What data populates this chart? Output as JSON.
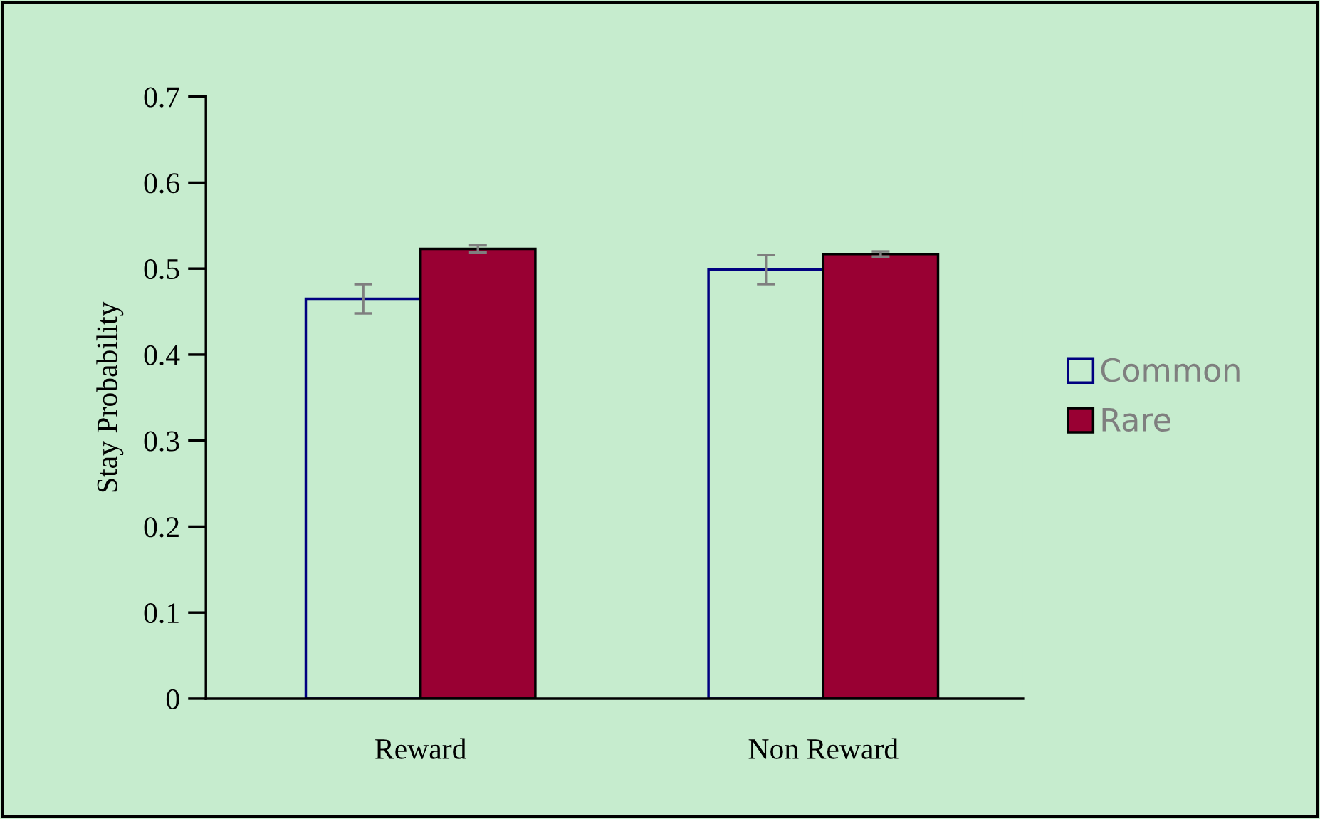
{
  "chart_data": {
    "type": "bar",
    "ylabel": "Stay Probability",
    "categories": [
      "Reward",
      "Non Reward"
    ],
    "series": [
      {
        "name": "Common",
        "color": "#c6ecce",
        "values": [
          0.465,
          0.499
        ],
        "errors": [
          0.017,
          0.017
        ]
      },
      {
        "name": "Rare",
        "color": "#990033",
        "values": [
          0.523,
          0.517
        ],
        "errors": [
          0.004,
          0.003
        ]
      }
    ],
    "ylim": [
      0,
      0.7
    ],
    "yticks": [
      0,
      0.1,
      0.2,
      0.3,
      0.4,
      0.5,
      0.6,
      0.7
    ],
    "grid": false,
    "legend": "right"
  }
}
